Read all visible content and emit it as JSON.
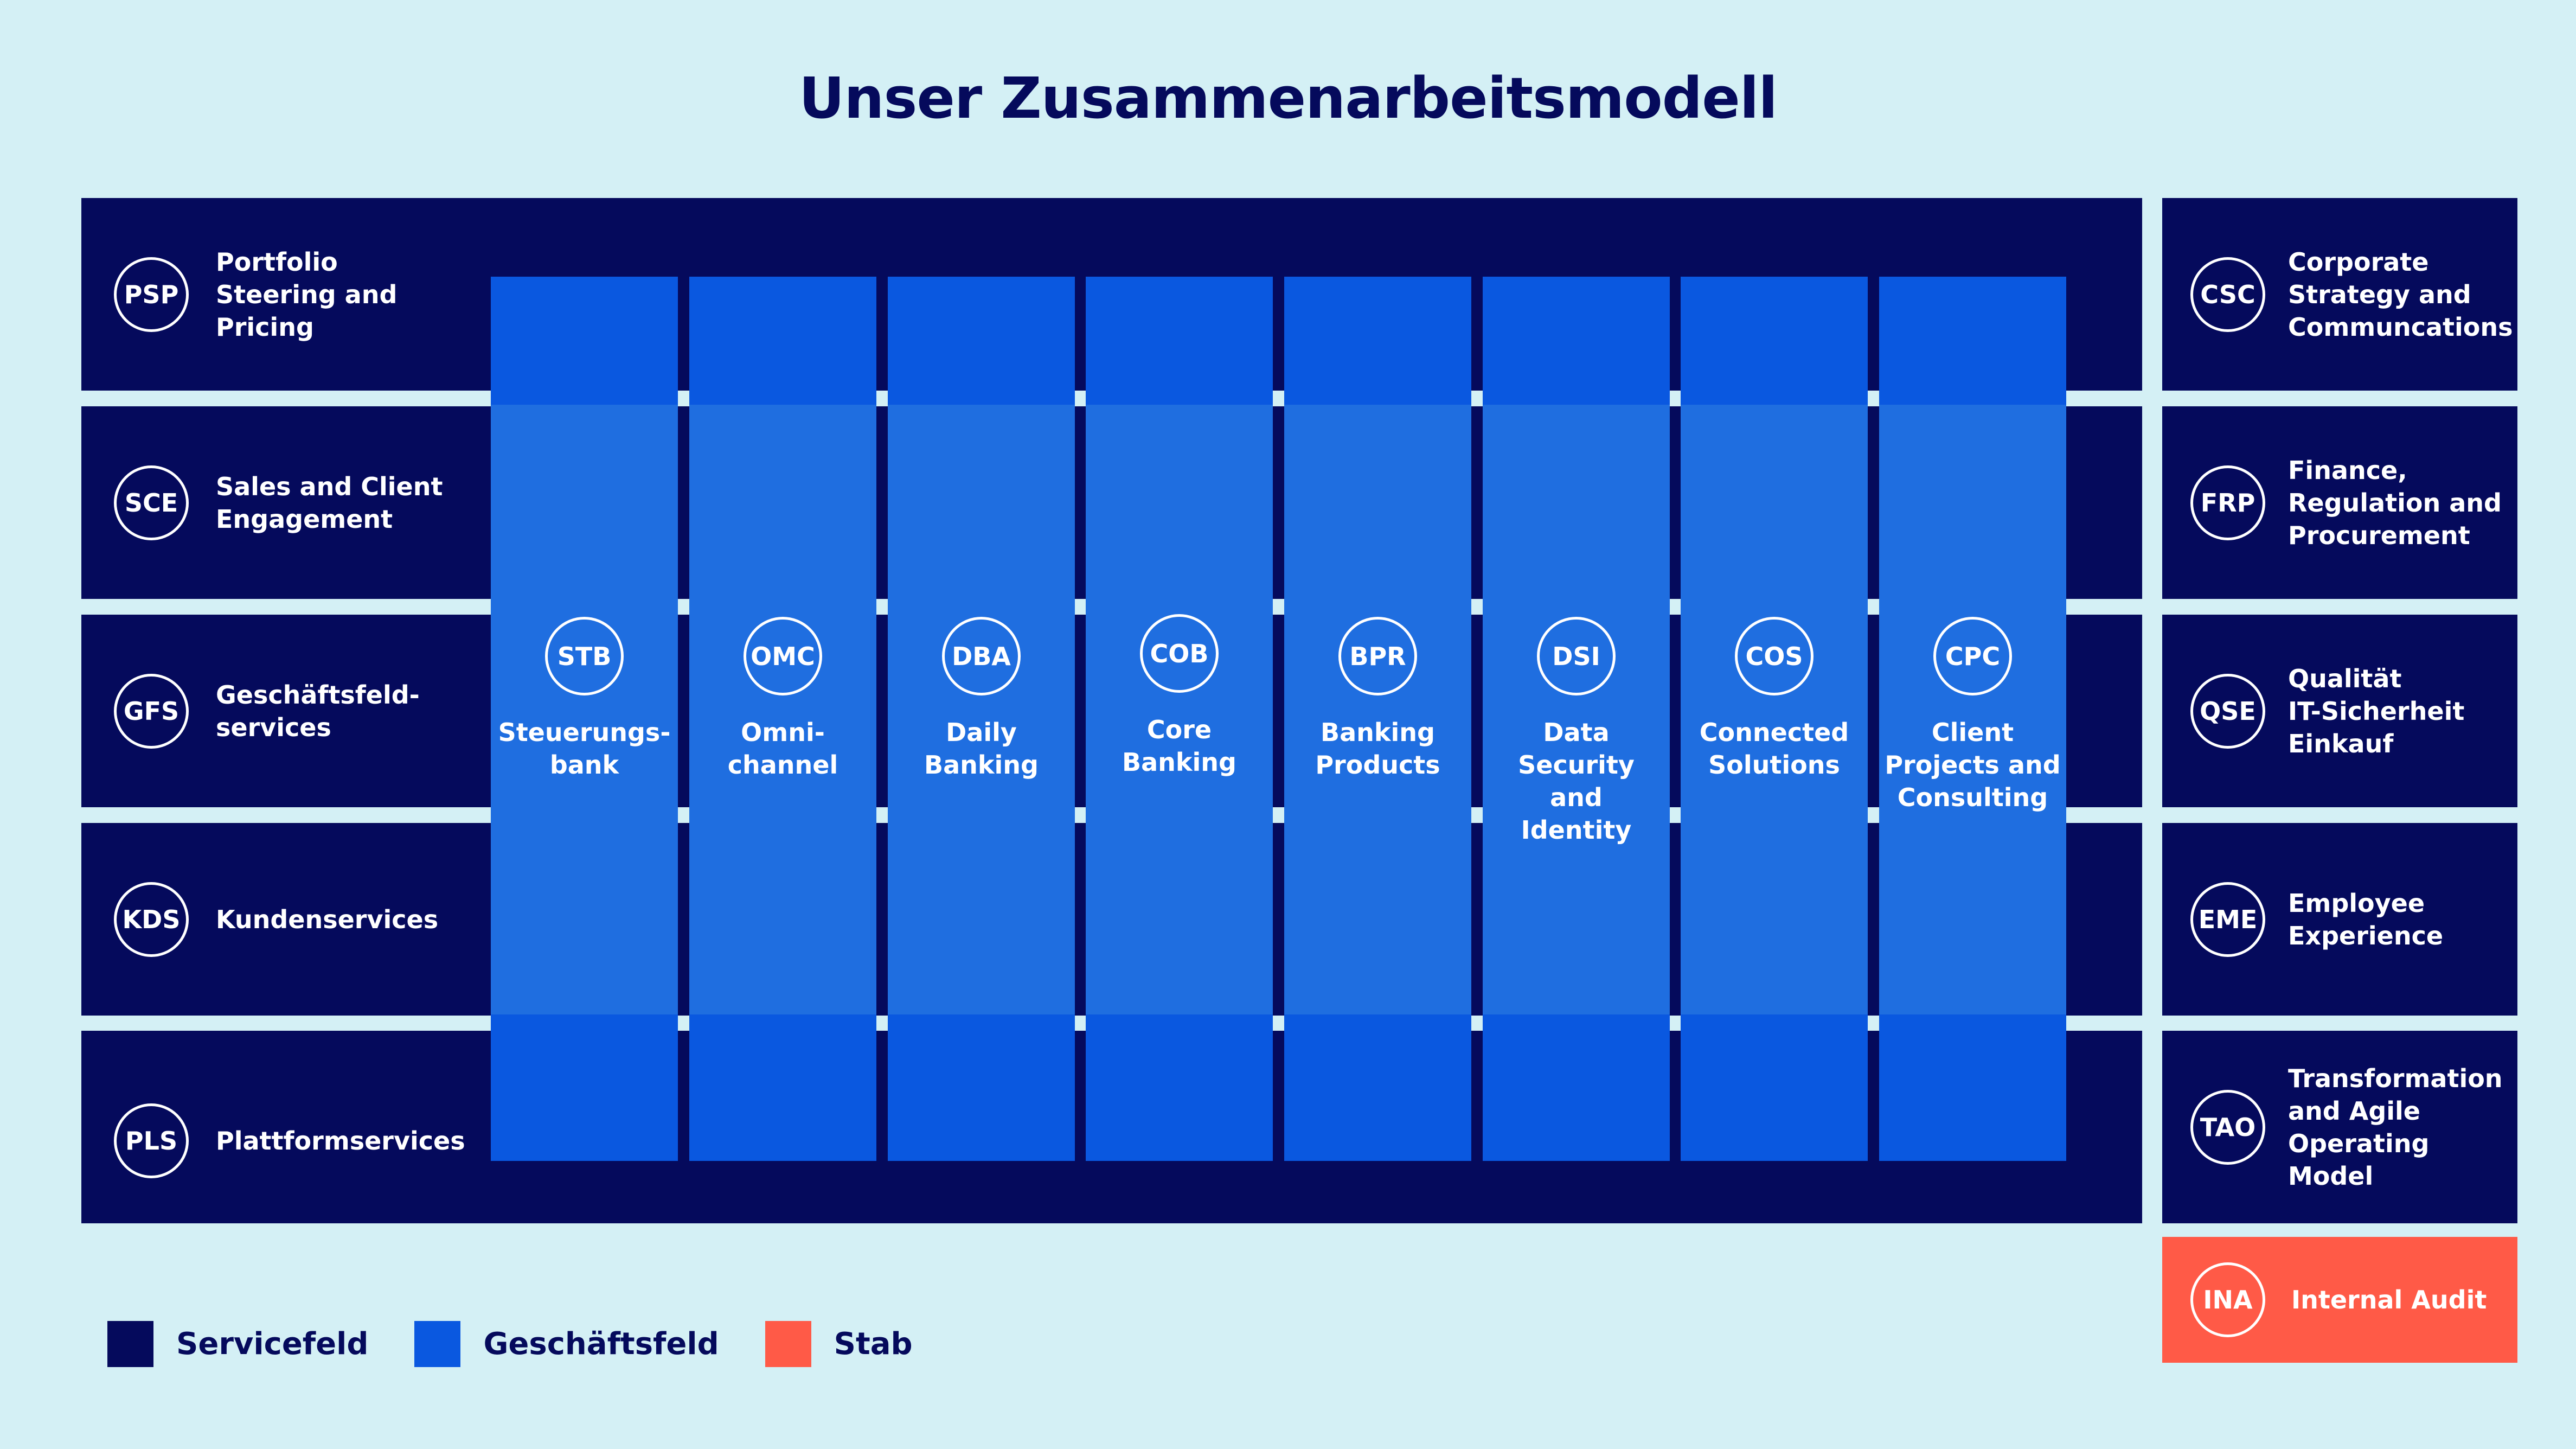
{
  "title": "Unser Zusammenarbeitsmodell",
  "colors": {
    "background": "#d4f0f5",
    "servicefeld": "#050a5c",
    "geschaeftsfeld": "#0a58e0",
    "geschaeftsfeld_light": "#1f6ee0",
    "stab": "#ff5a47",
    "text_light": "#ffffff"
  },
  "service_fields": [
    {
      "code": "PSP",
      "label": "Portfolio\nSteering and\nPricing"
    },
    {
      "code": "SCE",
      "label": "Sales and Client\nEngagement"
    },
    {
      "code": "GFS",
      "label": "Geschäftsfeld-\nservices"
    },
    {
      "code": "KDS",
      "label": "Kundenservices"
    },
    {
      "code": "PLS",
      "label": "Plattformservices"
    }
  ],
  "business_fields": [
    {
      "code": "STB",
      "label": "Steuerungs-\nbank"
    },
    {
      "code": "OMC",
      "label": "Omni-\nchannel"
    },
    {
      "code": "DBA",
      "label": "Daily\nBanking"
    },
    {
      "code": "COB",
      "label": "Core\nBanking"
    },
    {
      "code": "BPR",
      "label": "Banking\nProducts"
    },
    {
      "code": "DSI",
      "label": "Data\nSecurity\nand\nIdentity"
    },
    {
      "code": "COS",
      "label": "Connected\nSolutions"
    },
    {
      "code": "CPC",
      "label": "Client\nProjects and\nConsulting"
    }
  ],
  "staff_fields": [
    {
      "code": "CSC",
      "label": "Corporate\nStrategy and\nCommuncations"
    },
    {
      "code": "FRP",
      "label": "Finance,\nRegulation and\nProcurement"
    },
    {
      "code": "QSE",
      "label": "Qualität\nIT-Sicherheit\nEinkauf"
    },
    {
      "code": "EME",
      "label": "Employee\nExperience"
    },
    {
      "code": "TAO",
      "label": "Transformation\nand Agile\nOperating Model"
    },
    {
      "code": "INA",
      "label": "Internal Audit"
    }
  ],
  "legend": [
    {
      "label": "Servicefeld"
    },
    {
      "label": "Geschäftsfeld"
    },
    {
      "label": "Stab"
    }
  ]
}
